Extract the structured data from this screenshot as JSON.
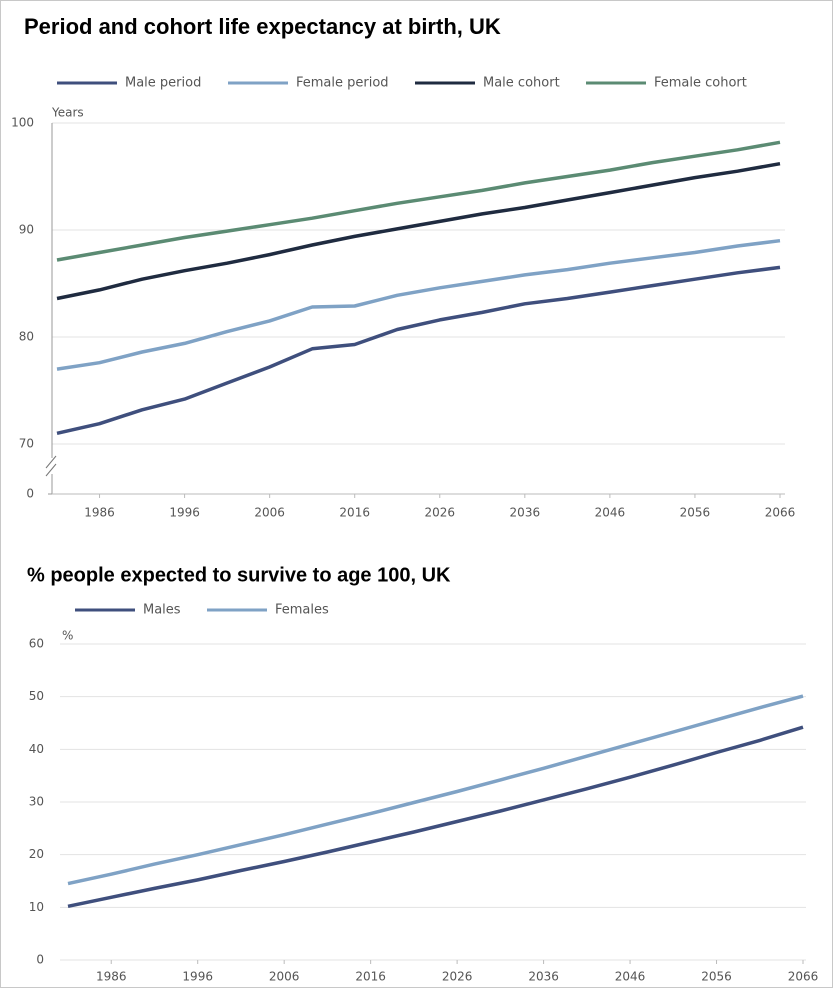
{
  "chart_data": [
    {
      "type": "line",
      "title": "Period and cohort life expectancy at birth, UK",
      "y_label": "Years",
      "x": [
        1981,
        1986,
        1991,
        1996,
        2001,
        2006,
        2011,
        2016,
        2021,
        2026,
        2031,
        2036,
        2041,
        2046,
        2051,
        2056,
        2061,
        2066
      ],
      "xlim": [
        1981,
        2066
      ],
      "xticks": [
        1986,
        1996,
        2006,
        2016,
        2026,
        2036,
        2046,
        2056,
        2066
      ],
      "ylim": [
        70,
        100
      ],
      "yticks": [
        0,
        70,
        80,
        90,
        100
      ],
      "axis_break": true,
      "grid": true,
      "series": [
        {
          "name": "Male period",
          "color": "#3f4f7d",
          "values": [
            71.0,
            71.9,
            73.2,
            74.2,
            75.7,
            77.2,
            78.9,
            79.3,
            80.7,
            81.6,
            82.3,
            83.1,
            83.6,
            84.2,
            84.8,
            85.4,
            86.0,
            86.5
          ]
        },
        {
          "name": "Female period",
          "color": "#7fa2c5",
          "values": [
            77.0,
            77.6,
            78.6,
            79.4,
            80.5,
            81.5,
            82.8,
            82.9,
            83.9,
            84.6,
            85.2,
            85.8,
            86.3,
            86.9,
            87.4,
            87.9,
            88.5,
            89.0
          ]
        },
        {
          "name": "Male cohort",
          "color": "#1f2b40",
          "values": [
            83.6,
            84.4,
            85.4,
            86.2,
            86.9,
            87.7,
            88.6,
            89.4,
            90.1,
            90.8,
            91.5,
            92.1,
            92.8,
            93.5,
            94.2,
            94.9,
            95.5,
            96.2
          ]
        },
        {
          "name": "Female cohort",
          "color": "#5b8b73",
          "values": [
            87.2,
            87.9,
            88.6,
            89.3,
            89.9,
            90.5,
            91.1,
            91.8,
            92.5,
            93.1,
            93.7,
            94.4,
            95.0,
            95.6,
            96.3,
            96.9,
            97.5,
            98.2
          ]
        }
      ]
    },
    {
      "type": "line",
      "title": "% people expected to survive to age 100, UK",
      "y_label": "%",
      "x": [
        1981,
        1986,
        1991,
        1996,
        2001,
        2006,
        2011,
        2016,
        2021,
        2026,
        2031,
        2036,
        2041,
        2046,
        2051,
        2056,
        2061,
        2066
      ],
      "xlim": [
        1981,
        2066
      ],
      "xticks": [
        1986,
        1996,
        2006,
        2016,
        2026,
        2036,
        2046,
        2056,
        2066
      ],
      "ylim": [
        0,
        60
      ],
      "yticks": [
        0,
        10,
        20,
        30,
        40,
        50,
        60
      ],
      "grid": true,
      "series": [
        {
          "name": "Males",
          "color": "#3f4f7d",
          "values": [
            10.2,
            11.9,
            13.6,
            15.2,
            17.0,
            18.7,
            20.5,
            22.4,
            24.3,
            26.3,
            28.3,
            30.4,
            32.5,
            34.7,
            37.0,
            39.4,
            41.7,
            44.2
          ]
        },
        {
          "name": "Females",
          "color": "#7fa2c5",
          "values": [
            14.5,
            16.3,
            18.2,
            20.0,
            21.9,
            23.8,
            25.8,
            27.8,
            29.9,
            32.0,
            34.2,
            36.4,
            38.7,
            41.0,
            43.3,
            45.6,
            47.9,
            50.1
          ]
        }
      ]
    }
  ]
}
